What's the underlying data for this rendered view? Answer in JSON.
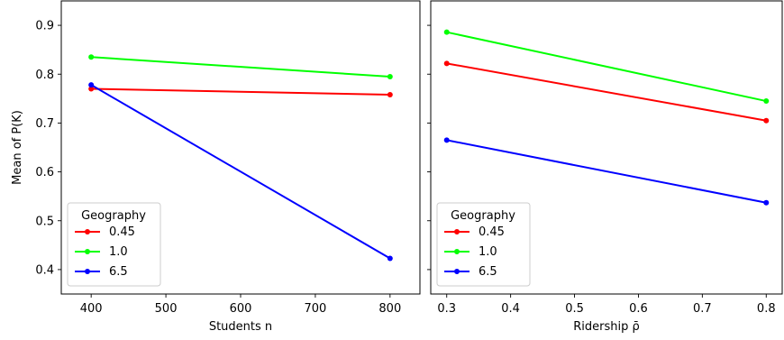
{
  "chart_data": [
    {
      "type": "line",
      "xlabel": "Students n",
      "ylabel": "Mean of P(K)",
      "xlim": [
        360,
        840
      ],
      "ylim": [
        0.35,
        0.95
      ],
      "xticks": [
        "400",
        "500",
        "600",
        "700",
        "800"
      ],
      "yticks": [
        "0.4",
        "0.5",
        "0.6",
        "0.7",
        "0.8",
        "0.9"
      ],
      "legend": {
        "title": "Geography",
        "placement": "lower-left"
      },
      "x": [
        400,
        800
      ],
      "series": [
        {
          "name": "0.45",
          "color": "#ff0000",
          "values": [
            0.77,
            0.758
          ]
        },
        {
          "name": "1.0",
          "color": "#00ff00",
          "values": [
            0.835,
            0.795
          ]
        },
        {
          "name": "6.5",
          "color": "#0000ff",
          "values": [
            0.778,
            0.423
          ]
        }
      ]
    },
    {
      "type": "line",
      "xlabel": "Ridership ρ̄",
      "ylabel": "",
      "xlim": [
        0.275,
        0.825
      ],
      "ylim": [
        0.35,
        0.95
      ],
      "xticks": [
        "0.3",
        "0.4",
        "0.5",
        "0.6",
        "0.7",
        "0.8"
      ],
      "yticks": [],
      "legend": {
        "title": "Geography",
        "placement": "lower-left"
      },
      "x": [
        0.3,
        0.8
      ],
      "series": [
        {
          "name": "0.45",
          "color": "#ff0000",
          "values": [
            0.822,
            0.705
          ]
        },
        {
          "name": "1.0",
          "color": "#00ff00",
          "values": [
            0.886,
            0.745
          ]
        },
        {
          "name": "6.5",
          "color": "#0000ff",
          "values": [
            0.665,
            0.537
          ]
        }
      ]
    }
  ]
}
